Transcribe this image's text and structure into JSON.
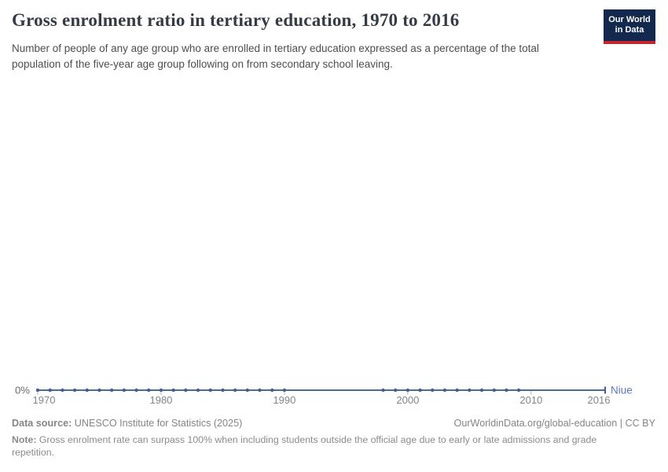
{
  "header": {
    "title": "Gross enrolment ratio in tertiary education, 1970 to 2016",
    "subtitle": "Number of people of any age group who are enrolled in tertiary education expressed as a percentage of the total population of the five-year age group following on from secondary school leaving.",
    "logo": {
      "line1": "Our World",
      "line2": "in Data"
    }
  },
  "chart_data": {
    "type": "line",
    "title": "Gross enrolment ratio in tertiary education, 1970 to 2016",
    "xlabel": "",
    "ylabel": "",
    "unit": "%",
    "xlim": [
      1970,
      2016
    ],
    "x_ticks": [
      1970,
      1980,
      1990,
      2000,
      2010,
      2016
    ],
    "y_ticks": [
      "0%"
    ],
    "grid": false,
    "legend_position": "end-of-line",
    "series": [
      {
        "name": "Niue",
        "color": "#4c6a9c",
        "points": [
          [
            1970,
            0
          ],
          [
            1971,
            0
          ],
          [
            1972,
            0
          ],
          [
            1973,
            0
          ],
          [
            1974,
            0
          ],
          [
            1975,
            0
          ],
          [
            1976,
            0
          ],
          [
            1977,
            0
          ],
          [
            1978,
            0
          ],
          [
            1979,
            0
          ],
          [
            1980,
            0
          ],
          [
            1981,
            0
          ],
          [
            1982,
            0
          ],
          [
            1983,
            0
          ],
          [
            1984,
            0
          ],
          [
            1985,
            0
          ],
          [
            1986,
            0
          ],
          [
            1987,
            0
          ],
          [
            1988,
            0
          ],
          [
            1989,
            0
          ],
          [
            1990,
            0
          ],
          [
            1998,
            0
          ],
          [
            1999,
            0
          ],
          [
            2000,
            0
          ],
          [
            2001,
            0
          ],
          [
            2002,
            0
          ],
          [
            2003,
            0
          ],
          [
            2004,
            0
          ],
          [
            2005,
            0
          ],
          [
            2006,
            0
          ],
          [
            2007,
            0
          ],
          [
            2008,
            0
          ],
          [
            2009,
            0
          ],
          [
            2016,
            0
          ]
        ]
      }
    ],
    "colors": {
      "line": "#4c6a9c",
      "dot": "#3f5f99",
      "tick": "#b9b9b9",
      "tick_label": "#858585",
      "axis_label": "#6b6b6b",
      "series_label": "#6079b6"
    }
  },
  "footer": {
    "datasource_label": "Data source:",
    "datasource": "UNESCO Institute for Statistics (2025)",
    "attribution": "OurWorldinData.org/global-education | CC BY",
    "note_label": "Note:",
    "note": "Gross enrolment rate can surpass 100% when including students outside the official age due to early or late admissions and grade repetition."
  }
}
